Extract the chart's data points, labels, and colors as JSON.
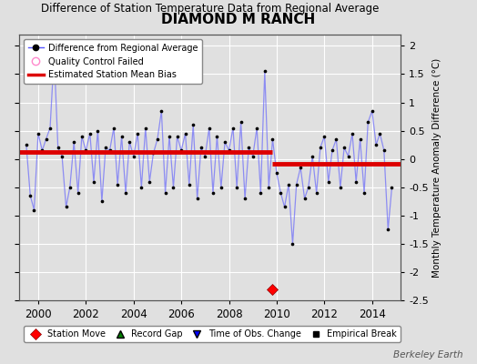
{
  "title": "DIAMOND M RANCH",
  "subtitle": "Difference of Station Temperature Data from Regional Average",
  "ylabel_right": "Monthly Temperature Anomaly Difference (°C)",
  "xlim": [
    1999.2,
    2015.2
  ],
  "ylim": [
    -2.5,
    2.2
  ],
  "yticks": [
    -2.5,
    -2,
    -1.5,
    -1,
    -0.5,
    0,
    0.5,
    1,
    1.5,
    2
  ],
  "ytick_labels": [
    "-2.5",
    "-2",
    "-1.5",
    "-1",
    "-0.5",
    "0",
    "0.5",
    "1",
    "1.5",
    "2"
  ],
  "xticks": [
    2000,
    2002,
    2004,
    2006,
    2008,
    2010,
    2012,
    2014
  ],
  "bias1_y": 0.13,
  "bias1_x_start": 1999.2,
  "bias1_x_end": 2009.83,
  "bias2_y": -0.08,
  "bias2_x_start": 2009.83,
  "bias2_x_end": 2015.2,
  "station_move_x": 2009.83,
  "station_move_y": -2.3,
  "background_color": "#e0e0e0",
  "plot_bg_color": "#e0e0e0",
  "grid_color": "#ffffff",
  "line_color": "#5555ff",
  "line_alpha": 0.6,
  "marker_color": "#000000",
  "bias_color": "#dd0000",
  "watermark": "Berkeley Earth",
  "data_x": [
    1999.5,
    1999.67,
    1999.83,
    2000.0,
    2000.17,
    2000.33,
    2000.5,
    2000.67,
    2000.83,
    2001.0,
    2001.17,
    2001.33,
    2001.5,
    2001.67,
    2001.83,
    2002.0,
    2002.17,
    2002.33,
    2002.5,
    2002.67,
    2002.83,
    2003.0,
    2003.17,
    2003.33,
    2003.5,
    2003.67,
    2003.83,
    2004.0,
    2004.17,
    2004.33,
    2004.5,
    2004.67,
    2004.83,
    2005.0,
    2005.17,
    2005.33,
    2005.5,
    2005.67,
    2005.83,
    2006.0,
    2006.17,
    2006.33,
    2006.5,
    2006.67,
    2006.83,
    2007.0,
    2007.17,
    2007.33,
    2007.5,
    2007.67,
    2007.83,
    2008.0,
    2008.17,
    2008.33,
    2008.5,
    2008.67,
    2008.83,
    2009.0,
    2009.17,
    2009.33,
    2009.5,
    2009.67,
    2009.83,
    2010.0,
    2010.17,
    2010.33,
    2010.5,
    2010.67,
    2010.83,
    2011.0,
    2011.17,
    2011.33,
    2011.5,
    2011.67,
    2011.83,
    2012.0,
    2012.17,
    2012.33,
    2012.5,
    2012.67,
    2012.83,
    2013.0,
    2013.17,
    2013.33,
    2013.5,
    2013.67,
    2013.83,
    2014.0,
    2014.17,
    2014.33,
    2014.5,
    2014.67,
    2014.83
  ],
  "data_y": [
    0.25,
    -0.65,
    -0.9,
    0.45,
    0.15,
    0.35,
    0.55,
    1.85,
    0.2,
    0.05,
    -0.85,
    -0.5,
    0.3,
    -0.6,
    0.4,
    0.15,
    0.45,
    -0.4,
    0.5,
    -0.75,
    0.2,
    0.15,
    0.55,
    -0.45,
    0.4,
    -0.6,
    0.3,
    0.05,
    0.45,
    -0.5,
    0.55,
    -0.4,
    0.1,
    0.35,
    0.85,
    -0.6,
    0.4,
    -0.5,
    0.4,
    0.15,
    0.45,
    -0.45,
    0.6,
    -0.7,
    0.2,
    0.05,
    0.55,
    -0.6,
    0.4,
    -0.5,
    0.3,
    0.15,
    0.55,
    -0.5,
    0.65,
    -0.7,
    0.2,
    0.05,
    0.55,
    -0.6,
    1.55,
    -0.5,
    0.35,
    -0.25,
    -0.6,
    -0.85,
    -0.45,
    -1.5,
    -0.45,
    -0.15,
    -0.7,
    -0.5,
    0.05,
    -0.6,
    0.2,
    0.4,
    -0.4,
    0.15,
    0.35,
    -0.5,
    0.2,
    0.05,
    0.45,
    -0.4,
    0.35,
    -0.6,
    0.65,
    0.85,
    0.25,
    0.45,
    0.15,
    -1.25,
    -0.5
  ]
}
